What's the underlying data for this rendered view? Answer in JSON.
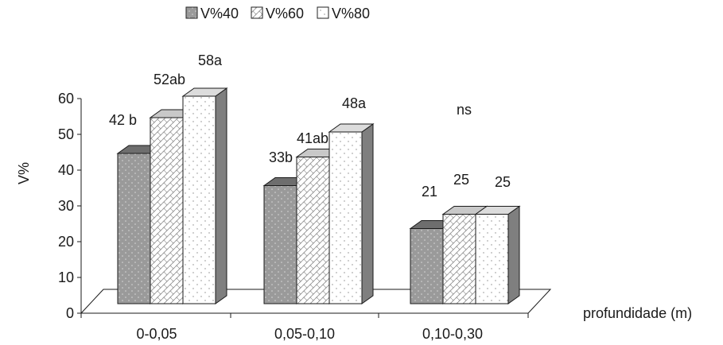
{
  "chart_data": {
    "type": "bar",
    "style": "3d-clustered",
    "categories": [
      "0-0,05",
      "0,05-0,10",
      "0,10-0,30"
    ],
    "series": [
      {
        "name": "V%40",
        "values": [
          42,
          33,
          21
        ],
        "labels": [
          "42 b",
          "33b",
          "21"
        ],
        "fill": "#9a9a9a",
        "pattern": "dots"
      },
      {
        "name": "V%60",
        "values": [
          52,
          41,
          25
        ],
        "labels": [
          "52ab",
          "41ab",
          "25"
        ],
        "fill": "#ffffff",
        "pattern": "crosshatch"
      },
      {
        "name": "V%80",
        "values": [
          58,
          48,
          25
        ],
        "labels": [
          "58a",
          "48a",
          "25"
        ],
        "fill": "#ffffff",
        "pattern": "fine-dots"
      }
    ],
    "annotations": [
      {
        "text": "ns",
        "category": "0,10-0,30"
      }
    ],
    "ylabel": "V%",
    "xlabel": "profundidade (m)",
    "ylim": [
      0,
      60
    ],
    "yticks": [
      "0",
      "10",
      "20",
      "30",
      "40",
      "50",
      "60"
    ],
    "grid": false,
    "legend_position": "top"
  }
}
